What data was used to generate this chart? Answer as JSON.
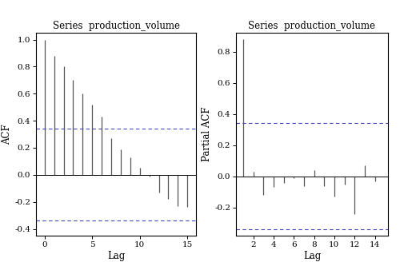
{
  "acf_title": "Series  production_volume",
  "pacf_title": "Series  production_volume",
  "acf_values": [
    1.0,
    0.88,
    0.8,
    0.7,
    0.6,
    0.52,
    0.43,
    0.27,
    0.19,
    0.13,
    0.05,
    -0.01,
    -0.13,
    -0.18,
    -0.23,
    -0.24
  ],
  "acf_lags": [
    0,
    1,
    2,
    3,
    4,
    5,
    6,
    7,
    8,
    9,
    10,
    11,
    12,
    13,
    14,
    15
  ],
  "pacf_values": [
    0.88,
    0.03,
    -0.12,
    -0.07,
    -0.04,
    -0.01,
    -0.06,
    0.04,
    -0.06,
    -0.13,
    -0.05,
    -0.24,
    0.07,
    -0.03
  ],
  "pacf_lags": [
    1,
    2,
    3,
    4,
    5,
    6,
    7,
    8,
    9,
    10,
    11,
    12,
    13,
    14
  ],
  "ci_upper": 0.34,
  "ci_lower": -0.34,
  "acf_ylim": [
    -0.45,
    1.05
  ],
  "pacf_ylim": [
    -0.38,
    0.92
  ],
  "acf_yticks": [
    -0.4,
    -0.2,
    0.0,
    0.2,
    0.4,
    0.6,
    0.8,
    1.0
  ],
  "pacf_yticks": [
    -0.2,
    0.0,
    0.2,
    0.4,
    0.6,
    0.8
  ],
  "acf_xticks": [
    0,
    5,
    10,
    15
  ],
  "pacf_xticks": [
    2,
    4,
    6,
    8,
    10,
    12,
    14
  ],
  "acf_xlabel": "Lag",
  "pacf_xlabel": "Lag",
  "acf_ylabel": "ACF",
  "pacf_ylabel": "Partial ACF",
  "bar_color": "#555555",
  "ci_color": "#4444BB",
  "background_color": "#ffffff"
}
